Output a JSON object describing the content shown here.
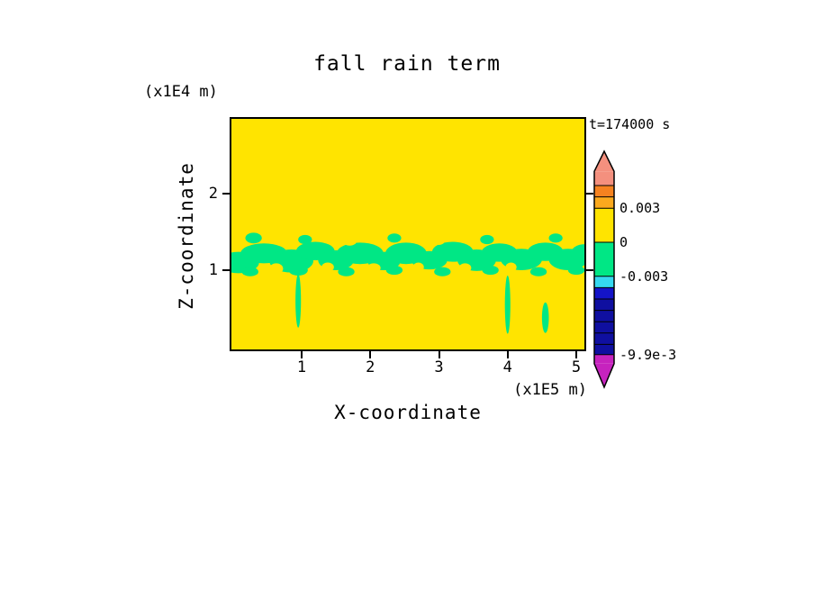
{
  "chart_data": {
    "type": "heatmap",
    "title": "fall rain term",
    "time_label": "t=174000 s",
    "x_axis": {
      "label": "X-coordinate",
      "unit": "(x1E5 m)",
      "ticks": [
        {
          "label": "1",
          "value": 1
        },
        {
          "label": "2",
          "value": 2
        },
        {
          "label": "3",
          "value": 3
        },
        {
          "label": "4",
          "value": 4
        },
        {
          "label": "5",
          "value": 5
        }
      ],
      "range": [
        0,
        5.14
      ]
    },
    "y_axis": {
      "label": "Z-coordinate",
      "unit": "(x1E4 m)",
      "ticks": [
        {
          "label": "1",
          "value": 1
        },
        {
          "label": "2",
          "value": 2
        }
      ],
      "range": [
        0,
        3.05
      ]
    },
    "colors": {
      "positive": "#FFE400",
      "negative": "#00E785",
      "frame": "#000000"
    },
    "colorbar": {
      "shaft_top": 0.00625,
      "shaft_bottom": -0.0107,
      "labels": [
        {
          "text": "0.003",
          "value": 0.003
        },
        {
          "text": "0",
          "value": 0
        },
        {
          "text": "-0.003",
          "value": -0.003
        },
        {
          "text": "-9.9e-3",
          "value": -0.0099
        }
      ],
      "segments": [
        {
          "color": "#F4907E",
          "from": 0.00625,
          "to": 0.005
        },
        {
          "color": "#F58220",
          "from": 0.005,
          "to": 0.004
        },
        {
          "color": "#FBA91E",
          "from": 0.004,
          "to": 0.003
        },
        {
          "color": "#FFE400",
          "from": 0.003,
          "to": 0
        },
        {
          "color": "#00E785",
          "from": 0,
          "to": -0.003
        },
        {
          "color": "#35D8F0",
          "from": -0.003,
          "to": -0.004
        },
        {
          "color": "#1414C8",
          "from": -0.004,
          "to": -0.005
        },
        {
          "color": "#0F0FA0",
          "from": -0.005,
          "to": -0.0099
        },
        {
          "color": "#C623BE",
          "from": -0.0099,
          "to": -0.0107
        }
      ],
      "dividers": [
        0.005,
        0.004,
        0.003,
        0,
        -0.003,
        -0.004,
        -0.005,
        -0.006,
        -0.007,
        -0.008,
        -0.009,
        -0.0099
      ]
    },
    "field_summary": "Field is uniformly in the 0..0.003 (yellow) bin except a ragged band of negative values (-0.003..0, green) centred near z=1.2x1E4 m spanning all x, with narrow negative streaks descending to z=0.3-0.7x1E4 m near x=0.95, 4.0 and 4.55 x1E5 m",
    "negative_blobs": [
      [
        0.08,
        1.1,
        0.3,
        0.14
      ],
      [
        0.45,
        1.22,
        0.34,
        0.13
      ],
      [
        0.85,
        1.12,
        0.32,
        0.15
      ],
      [
        1.2,
        1.25,
        0.28,
        0.12
      ],
      [
        1.5,
        1.13,
        0.26,
        0.13
      ],
      [
        1.85,
        1.22,
        0.34,
        0.14
      ],
      [
        2.2,
        1.12,
        0.24,
        0.12
      ],
      [
        2.52,
        1.22,
        0.3,
        0.14
      ],
      [
        2.86,
        1.13,
        0.26,
        0.12
      ],
      [
        3.2,
        1.24,
        0.3,
        0.13
      ],
      [
        3.55,
        1.13,
        0.28,
        0.14
      ],
      [
        3.88,
        1.23,
        0.26,
        0.12
      ],
      [
        4.2,
        1.14,
        0.3,
        0.14
      ],
      [
        4.55,
        1.24,
        0.26,
        0.12
      ],
      [
        4.88,
        1.14,
        0.28,
        0.14
      ],
      [
        5.12,
        1.22,
        0.2,
        0.12
      ],
      [
        0.3,
        1.42,
        0.12,
        0.07
      ],
      [
        1.05,
        1.4,
        0.1,
        0.06
      ],
      [
        2.35,
        1.42,
        0.1,
        0.06
      ],
      [
        3.7,
        1.4,
        0.1,
        0.06
      ],
      [
        4.7,
        1.42,
        0.1,
        0.06
      ],
      [
        0.25,
        0.98,
        0.12,
        0.06
      ],
      [
        0.95,
        1.0,
        0.14,
        0.07
      ],
      [
        1.65,
        0.98,
        0.12,
        0.06
      ],
      [
        2.35,
        1.0,
        0.12,
        0.06
      ],
      [
        3.05,
        0.98,
        0.12,
        0.06
      ],
      [
        3.75,
        1.0,
        0.12,
        0.06
      ],
      [
        4.45,
        0.98,
        0.12,
        0.06
      ],
      [
        5.0,
        1.0,
        0.12,
        0.06
      ],
      [
        0.95,
        0.6,
        0.04,
        0.35
      ],
      [
        4.0,
        0.55,
        0.04,
        0.38
      ],
      [
        4.55,
        0.38,
        0.05,
        0.2
      ]
    ],
    "positive_notches": [
      [
        0.63,
        1.02,
        0.1,
        0.07
      ],
      [
        1.38,
        1.04,
        0.09,
        0.06
      ],
      [
        2.05,
        1.03,
        0.1,
        0.06
      ],
      [
        2.7,
        1.04,
        0.08,
        0.06
      ],
      [
        3.38,
        1.03,
        0.09,
        0.06
      ],
      [
        4.05,
        1.04,
        0.08,
        0.06
      ],
      [
        1.7,
        1.38,
        0.1,
        0.06
      ],
      [
        3.0,
        1.38,
        0.08,
        0.05
      ],
      [
        4.35,
        1.38,
        0.09,
        0.05
      ]
    ]
  }
}
